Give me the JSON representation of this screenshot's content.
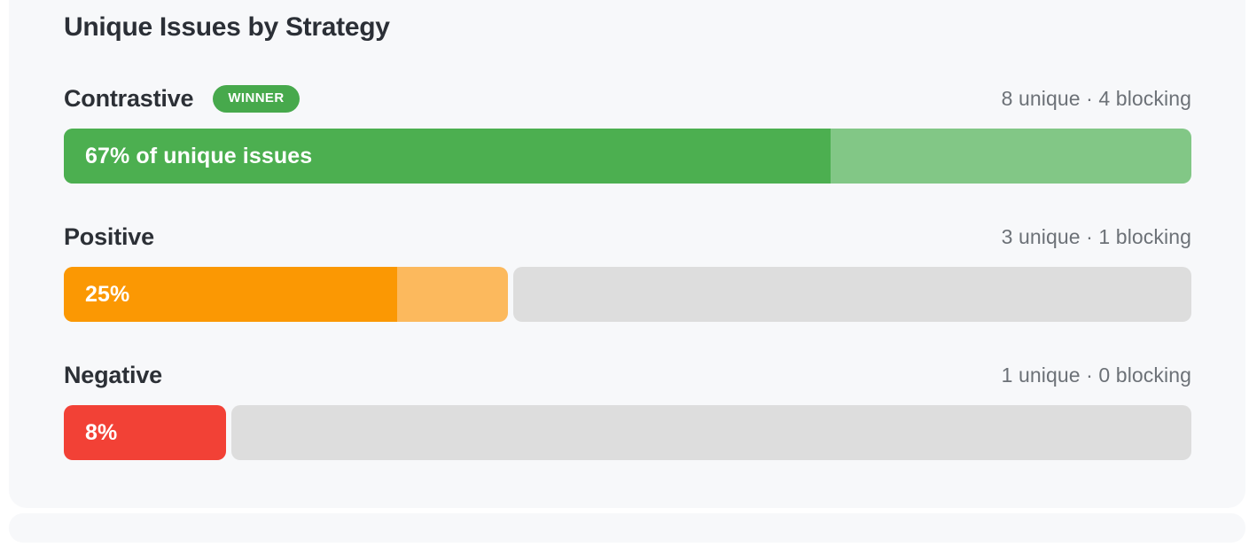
{
  "page": {
    "background": "#ffffff",
    "card_background": "#f7f8fa",
    "track_color": "#dddddd",
    "badge_color": "#47a94c"
  },
  "chart_data": {
    "type": "bar",
    "title": "Unique Issues by Strategy",
    "categories": [
      "Contrastive",
      "Positive",
      "Negative"
    ],
    "series": [
      {
        "name": "unique",
        "values": [
          8,
          3,
          1
        ]
      },
      {
        "name": "blocking",
        "values": [
          4,
          1,
          0
        ]
      }
    ],
    "percent_of_unique_issues": [
      67,
      25,
      8
    ],
    "xlabel": "",
    "ylabel": "",
    "legend": "none",
    "rows": [
      {
        "label": "Contrastive",
        "badge": "WINNER",
        "meta": "8 unique · 4 blocking",
        "unique": 8,
        "blocking": 4,
        "percent": 67,
        "bar_label": "67% of unique issues",
        "colors": {
          "fill": "#4caf50",
          "fill_light": "#82c786"
        },
        "layout": {
          "colored_width": "100%",
          "fill_width": "68%",
          "rest_display": "none"
        }
      },
      {
        "label": "Positive",
        "badge": "",
        "meta": "3 unique · 1 blocking",
        "unique": 3,
        "blocking": 1,
        "percent": 25,
        "bar_label": "25%",
        "colors": {
          "fill": "#fb9803",
          "fill_light": "#fcb95d"
        },
        "layout": {
          "colored_width": "39.4%",
          "fill_width": "75%",
          "rest_display": "block"
        }
      },
      {
        "label": "Negative",
        "badge": "",
        "meta": "1 unique · 0 blocking",
        "unique": 1,
        "blocking": 0,
        "percent": 8,
        "bar_label": "8%",
        "colors": {
          "fill": "#f24136",
          "fill_light": "#f24136"
        },
        "layout": {
          "colored_width": "14.4%",
          "fill_width": "100%",
          "rest_display": "block"
        }
      }
    ]
  }
}
